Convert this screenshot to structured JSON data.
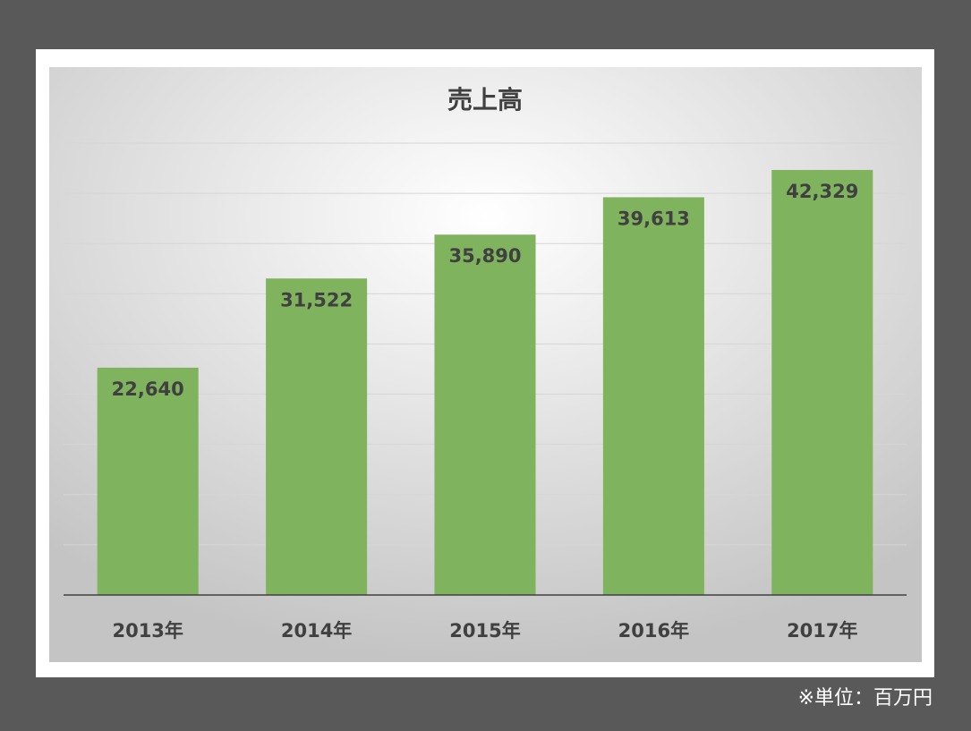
{
  "chart_data": {
    "type": "bar",
    "title": "売上高",
    "categories": [
      "2013年",
      "2014年",
      "2015年",
      "2016年",
      "2017年"
    ],
    "values": [
      22640,
      31522,
      35890,
      39613,
      42329
    ],
    "value_labels": [
      "22,640",
      "31,522",
      "35,890",
      "39,613",
      "42,329"
    ],
    "color": "#80b35e",
    "ylim": [
      0,
      45000
    ],
    "yticks": [
      0,
      5000,
      10000,
      15000,
      20000,
      25000,
      30000,
      35000,
      40000,
      45000
    ],
    "grid": true,
    "note": "※単位：百万円"
  }
}
